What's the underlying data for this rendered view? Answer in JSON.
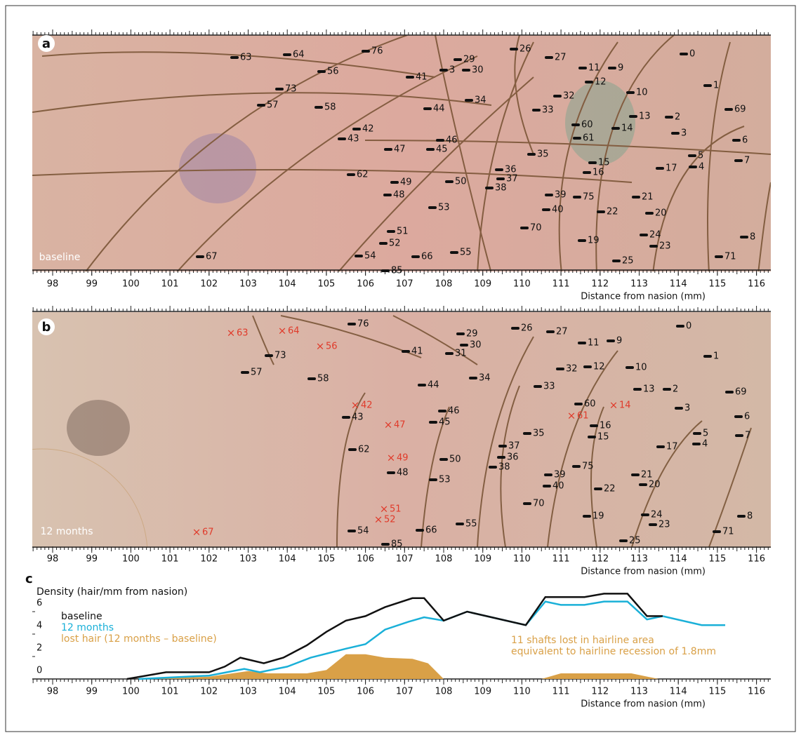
{
  "axis": {
    "xticks": [
      98,
      99,
      100,
      101,
      102,
      103,
      104,
      105,
      106,
      107,
      108,
      109,
      110,
      111,
      112,
      113,
      114,
      115,
      116
    ],
    "xlabel": "Distance from nasion (mm)"
  },
  "panels": [
    {
      "label": "a",
      "caption": "baseline",
      "hair_labels": [
        "63",
        "64",
        "76",
        "29",
        "3",
        "30",
        "26",
        "27",
        "11",
        "12",
        "9",
        "0",
        "56",
        "73",
        "41",
        "1",
        "10",
        "32",
        "34",
        "57",
        "58",
        "44",
        "33",
        "13",
        "2",
        "69",
        "60",
        "14",
        "42",
        "3",
        "61",
        "6",
        "43",
        "46",
        "45",
        "47",
        "35",
        "5",
        "7",
        "15",
        "4",
        "17",
        "16",
        "36",
        "62",
        "37",
        "49",
        "50",
        "38",
        "48",
        "21",
        "39",
        "75",
        "40",
        "53",
        "22",
        "20",
        "70",
        "51",
        "24",
        "19",
        "52",
        "8",
        "23",
        "67",
        "54",
        "66",
        "55",
        "71",
        "25",
        "85"
      ]
    },
    {
      "label": "b",
      "caption": "12 months",
      "hair_labels": [
        "76",
        "0",
        "29",
        "26",
        "27",
        "30",
        "11",
        "9",
        "41",
        "31",
        "1",
        "73",
        "57",
        "58",
        "32",
        "12",
        "10",
        "34",
        "33",
        "44",
        "13",
        "2",
        "69",
        "60",
        "3",
        "6",
        "43",
        "46",
        "45",
        "16",
        "15",
        "5",
        "35",
        "7",
        "4",
        "37",
        "17",
        "62",
        "36",
        "50",
        "38",
        "75",
        "48",
        "21",
        "39",
        "53",
        "40",
        "20",
        "22",
        "70",
        "19",
        "24",
        "8",
        "23",
        "55",
        "54",
        "66",
        "71",
        "25",
        "85"
      ],
      "lost_labels": [
        "63",
        "64",
        "56",
        "42",
        "14",
        "61",
        "47",
        "49",
        "51",
        "52",
        "67"
      ]
    }
  ],
  "chart_data": {
    "type": "line",
    "panel_label": "c",
    "ylabel": "Density (hair/mm from nasion)",
    "xlim": [
      98,
      116
    ],
    "ylim": [
      0,
      7.5
    ],
    "yticks": [
      0,
      2,
      4,
      6
    ],
    "series": [
      {
        "name": "baseline",
        "color": "#111111",
        "x": [
          99.9,
          100.9,
          102,
          102.4,
          102.8,
          103.4,
          103.9,
          104.5,
          105,
          105.5,
          106,
          106.5,
          107.2,
          107.5,
          108,
          108.6,
          110.1,
          110.6,
          111.6,
          112.1,
          112.7,
          113.2,
          113.6
        ],
        "values": [
          0,
          0.6,
          0.6,
          1.1,
          1.9,
          1.4,
          1.9,
          3,
          4.2,
          5.2,
          5.6,
          6.4,
          7.2,
          7.2,
          5.2,
          6,
          4.8,
          7.3,
          7.3,
          7.6,
          7.6,
          5.6,
          5.6
        ]
      },
      {
        "name": "12 months",
        "color": "#1ab0d8",
        "x": [
          100.2,
          102,
          102.9,
          103.3,
          104,
          104.6,
          105.5,
          106,
          106.5,
          107.1,
          107.5,
          108,
          108.6,
          110.1,
          110.6,
          111,
          111.6,
          112.1,
          112.7,
          113.2,
          113.6,
          114.6,
          115.2
        ],
        "values": [
          0,
          0.3,
          0.9,
          0.6,
          1.1,
          1.9,
          2.7,
          3.1,
          4.4,
          5.1,
          5.5,
          5.2,
          6,
          4.8,
          6.9,
          6.6,
          6.6,
          6.9,
          6.9,
          5.3,
          5.6,
          4.8,
          4.8
        ]
      },
      {
        "name": "lost hair (12 months – baseline)",
        "color": "#d9a047",
        "area": true,
        "x": [
          100.2,
          102,
          103,
          103.5,
          104.5,
          105,
          105.5,
          106,
          106.5,
          107.2,
          107.6,
          108,
          109,
          110.5,
          111,
          112.8,
          113.5
        ],
        "values": [
          0,
          0.2,
          0.7,
          0.5,
          0.5,
          0.8,
          2.2,
          2.2,
          1.9,
          1.8,
          1.4,
          0,
          null,
          0,
          0.5,
          0.5,
          0
        ]
      }
    ],
    "annotation": [
      "11 shafts lost in hairline area",
      "equivalent to hairline recession of 1.8mm"
    ]
  }
}
